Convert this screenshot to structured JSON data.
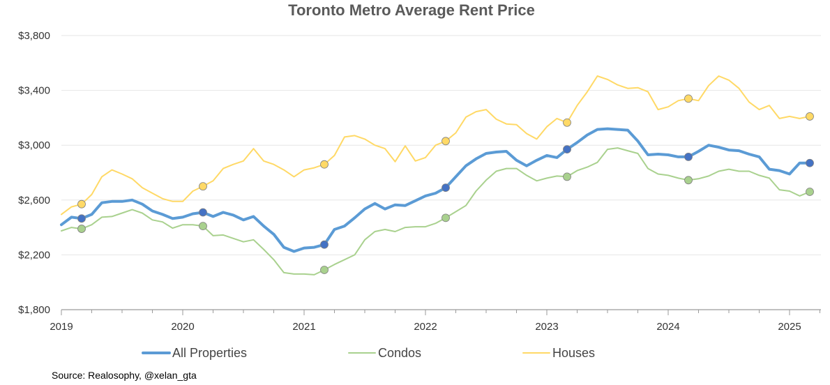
{
  "chart_data": {
    "type": "line",
    "title": "Toronto Metro Average Rent Price",
    "xlabel": "",
    "ylabel": "",
    "ylim": [
      1800,
      3800
    ],
    "y_ticks": [
      "$1,800",
      "$2,200",
      "$2,600",
      "$3,000",
      "$3,400",
      "$3,800"
    ],
    "y_tick_values": [
      1800,
      2200,
      2600,
      3000,
      3400,
      3800
    ],
    "x_tick_labels": [
      "2019",
      "2020",
      "2021",
      "2022",
      "2023",
      "2024",
      "2025"
    ],
    "x_range": [
      "2019-01",
      "2025-04"
    ],
    "grid": "horizontal",
    "legend_position": "bottom",
    "x": [
      "2019-01",
      "2019-02",
      "2019-03",
      "2019-04",
      "2019-05",
      "2019-06",
      "2019-07",
      "2019-08",
      "2019-09",
      "2019-10",
      "2019-11",
      "2019-12",
      "2020-01",
      "2020-02",
      "2020-03",
      "2020-04",
      "2020-05",
      "2020-06",
      "2020-07",
      "2020-08",
      "2020-09",
      "2020-10",
      "2020-11",
      "2020-12",
      "2021-01",
      "2021-02",
      "2021-03",
      "2021-04",
      "2021-05",
      "2021-06",
      "2021-07",
      "2021-08",
      "2021-09",
      "2021-10",
      "2021-11",
      "2021-12",
      "2022-01",
      "2022-02",
      "2022-03",
      "2022-04",
      "2022-05",
      "2022-06",
      "2022-07",
      "2022-08",
      "2022-09",
      "2022-10",
      "2022-11",
      "2022-12",
      "2023-01",
      "2023-02",
      "2023-03",
      "2023-04",
      "2023-05",
      "2023-06",
      "2023-07",
      "2023-08",
      "2023-09",
      "2023-10",
      "2023-11",
      "2023-12",
      "2024-01",
      "2024-02",
      "2024-03",
      "2024-04",
      "2024-05",
      "2024-06",
      "2024-07",
      "2024-08",
      "2024-09",
      "2024-10",
      "2024-11",
      "2024-12",
      "2025-01",
      "2025-02",
      "2025-03"
    ],
    "series": [
      {
        "name": "All Properties",
        "color": "#5b9bd5",
        "marker_color": "#4472c4",
        "width": 4,
        "values": [
          2420,
          2475,
          2465,
          2495,
          2580,
          2590,
          2590,
          2600,
          2570,
          2520,
          2495,
          2465,
          2475,
          2500,
          2510,
          2480,
          2510,
          2490,
          2455,
          2480,
          2410,
          2350,
          2255,
          2225,
          2250,
          2255,
          2275,
          2385,
          2410,
          2470,
          2535,
          2575,
          2535,
          2565,
          2560,
          2595,
          2630,
          2650,
          2690,
          2770,
          2850,
          2900,
          2940,
          2950,
          2955,
          2890,
          2850,
          2890,
          2925,
          2910,
          2970,
          3020,
          3075,
          3115,
          3120,
          3115,
          3110,
          3030,
          2930,
          2935,
          2930,
          2915,
          2915,
          2955,
          3000,
          2985,
          2965,
          2960,
          2935,
          2915,
          2825,
          2815,
          2790,
          2870,
          2870
        ],
        "markers": [
          "2019-03",
          "2020-03",
          "2021-03",
          "2022-03",
          "2023-03",
          "2024-03",
          "2025-03"
        ]
      },
      {
        "name": "Condos",
        "color": "#a9d18e",
        "marker_color": "#a9d18e",
        "width": 2,
        "values": [
          2375,
          2400,
          2390,
          2420,
          2475,
          2480,
          2505,
          2530,
          2505,
          2455,
          2440,
          2395,
          2420,
          2420,
          2410,
          2340,
          2345,
          2320,
          2295,
          2310,
          2240,
          2165,
          2070,
          2060,
          2060,
          2055,
          2090,
          2130,
          2165,
          2200,
          2310,
          2370,
          2385,
          2370,
          2400,
          2405,
          2405,
          2430,
          2470,
          2515,
          2560,
          2665,
          2745,
          2810,
          2830,
          2830,
          2780,
          2740,
          2760,
          2775,
          2770,
          2815,
          2840,
          2875,
          2970,
          2980,
          2960,
          2940,
          2830,
          2790,
          2780,
          2760,
          2745,
          2755,
          2775,
          2810,
          2825,
          2810,
          2810,
          2780,
          2760,
          2675,
          2665,
          2630,
          2660
        ],
        "markers": [
          "2019-03",
          "2020-03",
          "2021-03",
          "2022-03",
          "2023-03",
          "2024-03",
          "2025-03"
        ]
      },
      {
        "name": "Houses",
        "color": "#ffd966",
        "marker_color": "#ffd966",
        "width": 2,
        "values": [
          2495,
          2550,
          2570,
          2640,
          2770,
          2820,
          2790,
          2755,
          2690,
          2650,
          2610,
          2590,
          2590,
          2665,
          2700,
          2740,
          2830,
          2860,
          2885,
          2975,
          2885,
          2860,
          2820,
          2770,
          2820,
          2835,
          2860,
          2925,
          3060,
          3070,
          3045,
          3000,
          2975,
          2880,
          2995,
          2885,
          2910,
          3000,
          3030,
          3090,
          3205,
          3245,
          3260,
          3190,
          3155,
          3150,
          3085,
          3045,
          3135,
          3195,
          3165,
          3290,
          3390,
          3505,
          3480,
          3440,
          3415,
          3420,
          3390,
          3260,
          3280,
          3325,
          3340,
          3325,
          3435,
          3505,
          3475,
          3415,
          3315,
          3260,
          3290,
          3195,
          3210,
          3195,
          3210
        ],
        "markers": [
          "2019-03",
          "2020-03",
          "2021-03",
          "2022-03",
          "2023-03",
          "2024-03",
          "2025-03"
        ]
      }
    ]
  },
  "source": "Source: Realosophy, @xelan_gta"
}
